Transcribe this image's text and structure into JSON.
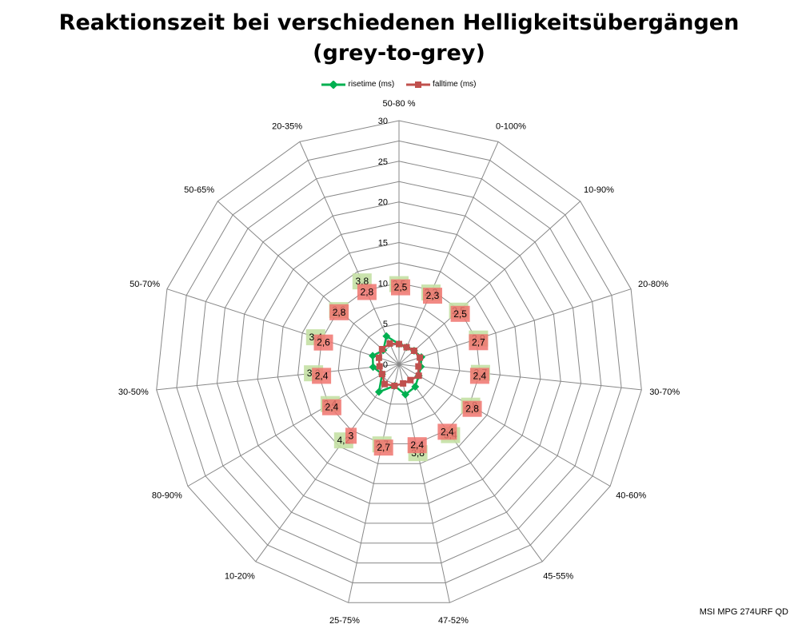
{
  "title_line1": "Reaktionszeit bei verschiedenen Helligkeitsübergängen",
  "title_line2": "(grey-to-grey)",
  "watermark": "MSI MPG 274URF QD",
  "chart_data": {
    "type": "radar",
    "title": "Reaktionszeit bei verschiedenen Helligkeitsübergängen (grey-to-grey)",
    "categories": [
      "50-80 %",
      "0-100%",
      "10-90%",
      "20-80%",
      "30-70%",
      "40-60%",
      "45-55%",
      "47-52%",
      "25-75%",
      "10-20%",
      "80-90%",
      "30-50%",
      "50-70%",
      "50-65%",
      "20-35%"
    ],
    "r_ticks": [
      "0",
      "5",
      "10",
      "15",
      "20",
      "25",
      "30"
    ],
    "rlim": [
      0,
      30
    ],
    "legend_position": "top-center",
    "series": [
      {
        "name": "risetime (ms)",
        "color": "#00b050",
        "marker": "diamond",
        "values": [
          2.5,
          2.3,
          2.5,
          2.9,
          2.7,
          2.8,
          3.4,
          3.8,
          2.7,
          4.2,
          2.4,
          3.2,
          3.4,
          2.6,
          3.8
        ],
        "labels": [
          "2,5",
          "2,3",
          "2,5",
          "2,9",
          "2,7",
          "2,8",
          "3,4",
          "3,8",
          "2,7",
          "4,2",
          "2,4",
          "3,2",
          "3,4",
          "2,6",
          "3,8"
        ]
      },
      {
        "name": "falltime (ms)",
        "color": "#c0504d",
        "marker": "square",
        "values": [
          2.5,
          2.3,
          2.5,
          2.7,
          2.4,
          2.8,
          2.4,
          2.4,
          2.7,
          3.0,
          2.4,
          2.4,
          2.6,
          2.8,
          2.8
        ],
        "labels": [
          "2,5",
          "2,3",
          "2,5",
          "2,7",
          "2,4",
          "2,8",
          "2,4",
          "2,4",
          "2,7",
          "3",
          "2,4",
          "2,4",
          "2,6",
          "2,8",
          "2,8"
        ]
      }
    ]
  }
}
